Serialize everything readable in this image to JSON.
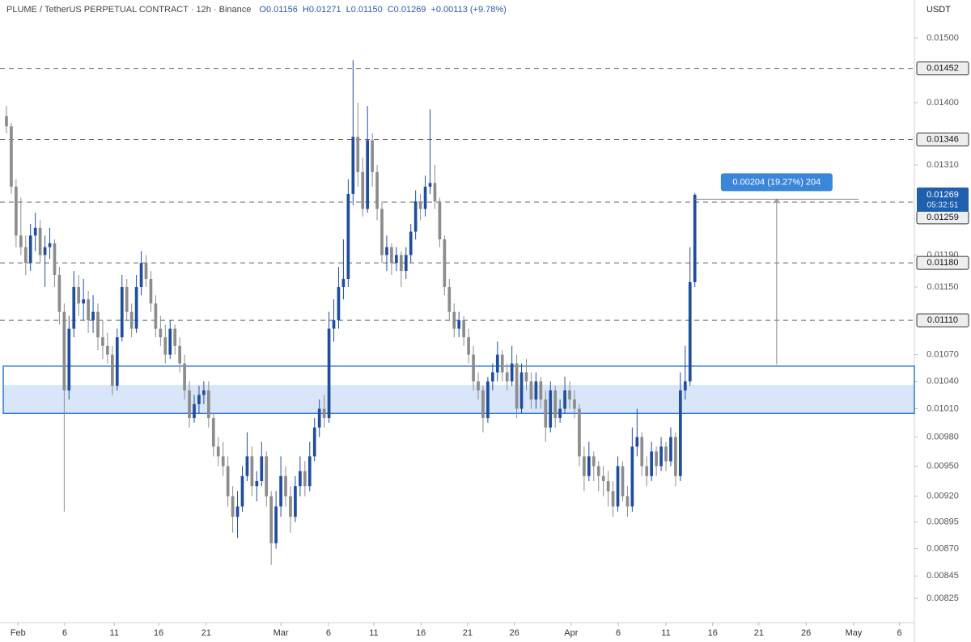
{
  "chart_data": {
    "type": "candlestick",
    "header": {
      "symbol": "PLUME / TetherUS PERPETUAL CONTRACT · 12h · Binance",
      "ohlc": [
        "O0.01156",
        "H0.01271",
        "L0.01150",
        "C0.01269",
        "+0.00113 (+9.78%)"
      ]
    },
    "currency": "USDT",
    "up_color": "#1f4e9c",
    "down_color": "#8c8c8c",
    "log_scale": true,
    "ylim": [
      0.00804,
      0.01562
    ],
    "yticks": [
      {
        "value": 0.015,
        "label": "0.01500"
      },
      {
        "value": 0.014,
        "label": "0.01400"
      },
      {
        "value": 0.0131,
        "label": "0.01310"
      },
      {
        "value": 0.0119,
        "label": "0.01190"
      },
      {
        "value": 0.0115,
        "label": "0.01150"
      },
      {
        "value": 0.0107,
        "label": "0.01070"
      },
      {
        "value": 0.0104,
        "label": "0.01040"
      },
      {
        "value": 0.0101,
        "label": "0.01010"
      },
      {
        "value": 0.0098,
        "label": "0.00980"
      },
      {
        "value": 0.0095,
        "label": "0.00950"
      },
      {
        "value": 0.0092,
        "label": "0.00920"
      },
      0.00895,
      {
        "value": 0.0087,
        "label": "0.00870"
      },
      0.00845,
      0.00825
    ],
    "xlim": [
      -1.34,
      188.6
    ],
    "xticks": [
      {
        "value": 2.4,
        "label": "Feb"
      },
      {
        "value": 12.1,
        "label": "6"
      },
      {
        "value": 22.4,
        "label": "11"
      },
      {
        "value": 31.6,
        "label": "16"
      },
      {
        "value": 41.5,
        "label": "21"
      },
      {
        "value": 57.0,
        "label": "Mar"
      },
      {
        "value": 66.9,
        "label": "6"
      },
      {
        "value": 76.3,
        "label": "11"
      },
      {
        "value": 86.1,
        "label": "16"
      },
      {
        "value": 95.8,
        "label": "21"
      },
      {
        "value": 105.5,
        "label": "26"
      },
      {
        "value": 117.3,
        "label": "Apr"
      },
      {
        "value": 127.1,
        "label": "6"
      },
      {
        "value": 137.0,
        "label": "11"
      },
      {
        "value": 146.7,
        "label": "16"
      },
      {
        "value": 156.3,
        "label": "21"
      },
      {
        "value": 166.1,
        "label": "26"
      },
      {
        "value": 176.0,
        "label": "May"
      },
      {
        "value": 185.5,
        "label": "6"
      }
    ],
    "open": [
      0.0138,
      0.01365,
      0.0128,
      0.01215,
      0.012,
      0.0118,
      0.01215,
      0.01225,
      0.0119,
      0.012,
      0.01205,
      0.01165,
      0.0112,
      0.0103,
      0.011,
      0.0115,
      0.0113,
      0.01135,
      0.0111,
      0.0112,
      0.0109,
      0.0108,
      0.0107,
      0.01035,
      0.0109,
      0.0115,
      0.0112,
      0.011,
      0.0115,
      0.0118,
      0.0116,
      0.0113,
      0.011,
      0.0109,
      0.0107,
      0.011,
      0.0108,
      0.0106,
      0.0103,
      0.01,
      0.01015,
      0.01025,
      0.0103,
      0.01,
      0.0097,
      0.0096,
      0.0095,
      0.0092,
      0.009,
      0.0091,
      0.0094,
      0.0096,
      0.0093,
      0.00935,
      0.0096,
      0.0092,
      0.00875,
      0.0091,
      0.0094,
      0.0092,
      0.009,
      0.0093,
      0.00945,
      0.0093,
      0.0096,
      0.0099,
      0.0101,
      0.01,
      0.011,
      0.0111,
      0.0115,
      0.0116,
      0.0127,
      0.0135,
      0.013,
      0.0125,
      0.01345,
      0.013,
      0.0125,
      0.0119,
      0.012,
      0.0118,
      0.0119,
      0.0117,
      0.0119,
      0.0122,
      0.0126,
      0.0125,
      0.0128,
      0.01285,
      0.0126,
      0.0121,
      0.0115,
      0.0112,
      0.011,
      0.0111,
      0.0109,
      0.0107,
      0.0104,
      0.0103,
      0.01,
      0.0104,
      0.0105,
      0.0107,
      0.0105,
      0.0104,
      0.0106,
      0.0101,
      0.0105,
      0.0104,
      0.0102,
      0.0104,
      0.0102,
      0.0099,
      0.0103,
      0.01,
      0.0101,
      0.0103,
      0.0102,
      0.0101,
      0.0096,
      0.0094,
      0.0096,
      0.0095,
      0.0094,
      0.00935,
      0.00925,
      0.0091,
      0.0095,
      0.0092,
      0.0091,
      0.0097,
      0.0098,
      0.0095,
      0.0094,
      0.00965,
      0.0095,
      0.0097,
      0.00955,
      0.0098,
      0.0094,
      0.0103,
      0.0104,
      0.01156
    ],
    "high": [
      0.01395,
      0.0137,
      0.0129,
      0.01265,
      0.01215,
      0.0123,
      0.01245,
      0.01235,
      0.01215,
      0.01225,
      0.0121,
      0.01175,
      0.0113,
      0.01115,
      0.0117,
      0.01165,
      0.0116,
      0.01145,
      0.0114,
      0.0113,
      0.0111,
      0.01095,
      0.0108,
      0.011,
      0.01165,
      0.0116,
      0.0113,
      0.01165,
      0.01195,
      0.0119,
      0.0117,
      0.0114,
      0.01115,
      0.01105,
      0.0111,
      0.01105,
      0.0109,
      0.0107,
      0.0104,
      0.01025,
      0.01035,
      0.0104,
      0.0104,
      0.01005,
      0.0098,
      0.00975,
      0.0096,
      0.0093,
      0.00925,
      0.0095,
      0.00985,
      0.0097,
      0.00945,
      0.00975,
      0.00965,
      0.00925,
      0.00925,
      0.0096,
      0.0095,
      0.0093,
      0.0094,
      0.0096,
      0.00955,
      0.00975,
      0.01,
      0.0102,
      0.01025,
      0.0112,
      0.01135,
      0.01175,
      0.0121,
      0.0129,
      0.01465,
      0.014,
      0.0132,
      0.01395,
      0.01355,
      0.0131,
      0.0126,
      0.01215,
      0.01205,
      0.012,
      0.01195,
      0.012,
      0.0123,
      0.01275,
      0.0127,
      0.01295,
      0.0139,
      0.0131,
      0.01265,
      0.01215,
      0.0116,
      0.0113,
      0.0112,
      0.01115,
      0.011,
      0.0108,
      0.0105,
      0.01035,
      0.01045,
      0.0106,
      0.01085,
      0.01075,
      0.0106,
      0.0108,
      0.0107,
      0.0106,
      0.01065,
      0.0105,
      0.0105,
      0.01045,
      0.0103,
      0.0104,
      0.01035,
      0.0102,
      0.01045,
      0.0104,
      0.0103,
      0.01015,
      0.0097,
      0.00975,
      0.00965,
      0.00955,
      0.0095,
      0.00945,
      0.00935,
      0.0096,
      0.00955,
      0.0093,
      0.0099,
      0.0101,
      0.00985,
      0.0096,
      0.00975,
      0.0097,
      0.0098,
      0.00975,
      0.0099,
      0.00985,
      0.0105,
      0.0108,
      0.012,
      0.01271
    ],
    "low": [
      0.01355,
      0.0127,
      0.012,
      0.0119,
      0.01165,
      0.0117,
      0.01195,
      0.0118,
      0.0115,
      0.01185,
      0.0115,
      0.01105,
      0.00905,
      0.0102,
      0.0109,
      0.01115,
      0.0111,
      0.01095,
      0.01095,
      0.01075,
      0.01065,
      0.0106,
      0.01025,
      0.0103,
      0.01085,
      0.0111,
      0.0109,
      0.01095,
      0.0114,
      0.0115,
      0.0112,
      0.0109,
      0.0108,
      0.0106,
      0.01065,
      0.0107,
      0.0105,
      0.0102,
      0.0099,
      0.00995,
      0.01005,
      0.01015,
      0.0099,
      0.0096,
      0.0095,
      0.0094,
      0.0091,
      0.00885,
      0.0088,
      0.00905,
      0.00935,
      0.0092,
      0.00915,
      0.0093,
      0.0091,
      0.00855,
      0.0087,
      0.009,
      0.0091,
      0.00885,
      0.00895,
      0.0092,
      0.0092,
      0.00925,
      0.00955,
      0.0098,
      0.0099,
      0.00995,
      0.01085,
      0.011,
      0.01135,
      0.0115,
      0.01255,
      0.0128,
      0.0124,
      0.01245,
      0.0128,
      0.01235,
      0.0118,
      0.0117,
      0.01165,
      0.0117,
      0.0115,
      0.0116,
      0.0118,
      0.0121,
      0.01235,
      0.0124,
      0.0127,
      0.0125,
      0.012,
      0.0114,
      0.0111,
      0.0109,
      0.0109,
      0.0108,
      0.0106,
      0.0103,
      0.0102,
      0.00985,
      0.00995,
      0.0103,
      0.0104,
      0.0104,
      0.0103,
      0.01035,
      0.01,
      0.01005,
      0.0103,
      0.0101,
      0.0101,
      0.0101,
      0.00975,
      0.00985,
      0.0099,
      0.00995,
      0.01005,
      0.0101,
      0.01,
      0.0095,
      0.00925,
      0.00935,
      0.00935,
      0.00925,
      0.0092,
      0.0091,
      0.009,
      0.00905,
      0.00915,
      0.009,
      0.00905,
      0.0096,
      0.0094,
      0.0093,
      0.00935,
      0.0094,
      0.00945,
      0.00945,
      0.0095,
      0.0093,
      0.00935,
      0.0102,
      0.01035,
      0.0115
    ],
    "close": [
      0.01365,
      0.0128,
      0.01215,
      0.012,
      0.0118,
      0.01215,
      0.01225,
      0.0119,
      0.012,
      0.01205,
      0.01165,
      0.0112,
      0.0103,
      0.011,
      0.0115,
      0.0113,
      0.01135,
      0.0111,
      0.0112,
      0.0109,
      0.0108,
      0.0107,
      0.01035,
      0.0109,
      0.0115,
      0.0112,
      0.011,
      0.0115,
      0.0118,
      0.0116,
      0.0113,
      0.011,
      0.0109,
      0.0107,
      0.011,
      0.0108,
      0.0106,
      0.0103,
      0.01,
      0.01015,
      0.01025,
      0.0103,
      0.01,
      0.0097,
      0.0096,
      0.0095,
      0.0092,
      0.009,
      0.0091,
      0.0094,
      0.0096,
      0.0093,
      0.00935,
      0.0096,
      0.0092,
      0.00875,
      0.0091,
      0.0094,
      0.0092,
      0.009,
      0.0093,
      0.00945,
      0.0093,
      0.0096,
      0.0099,
      0.0101,
      0.01,
      0.011,
      0.0111,
      0.0115,
      0.0116,
      0.0127,
      0.0135,
      0.013,
      0.0125,
      0.01345,
      0.013,
      0.0125,
      0.0119,
      0.012,
      0.0118,
      0.0119,
      0.0117,
      0.0119,
      0.0122,
      0.0126,
      0.0125,
      0.0128,
      0.01285,
      0.0126,
      0.0121,
      0.0115,
      0.0112,
      0.011,
      0.0111,
      0.0109,
      0.0107,
      0.0104,
      0.0103,
      0.01,
      0.0104,
      0.0105,
      0.0107,
      0.0105,
      0.0104,
      0.0106,
      0.0101,
      0.0105,
      0.0104,
      0.0102,
      0.0104,
      0.0102,
      0.0099,
      0.0103,
      0.01,
      0.0101,
      0.0103,
      0.0102,
      0.0101,
      0.0096,
      0.0094,
      0.0096,
      0.0095,
      0.0094,
      0.00935,
      0.00925,
      0.0091,
      0.0095,
      0.0092,
      0.0091,
      0.0097,
      0.0098,
      0.0095,
      0.0094,
      0.00965,
      0.0095,
      0.0097,
      0.00955,
      0.0098,
      0.0094,
      0.0103,
      0.0104,
      0.01156,
      0.01269
    ],
    "levels": [
      0.01452,
      0.01346,
      0.01259,
      {
        "value": 0.0118,
        "label": "0.01180"
      },
      {
        "value": 0.0111,
        "label": "0.01110"
      }
    ],
    "zone": {
      "top": 0.01057,
      "bottom": 0.01005,
      "fill_top": 0.01036
    },
    "last_price": {
      "value": 0.01269,
      "countdown": "05:32:51"
    },
    "measure": {
      "from": 0.01059,
      "to": 0.01263,
      "x": [
        143,
        177
      ],
      "label": "0.00204 (19.27%) 204"
    }
  }
}
